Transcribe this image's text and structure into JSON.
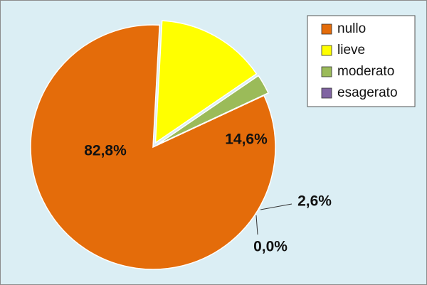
{
  "chart_data": {
    "type": "pie",
    "categories": [
      "nullo",
      "lieve",
      "moderato",
      "esagerato"
    ],
    "values": [
      82.8,
      14.6,
      2.6,
      0.0
    ],
    "value_labels": [
      "82,8%",
      "14,6%",
      "2,6%",
      "0,0%"
    ],
    "colors": [
      "#e46c0a",
      "#ffff00",
      "#9bbb59",
      "#8064a2"
    ],
    "legend": "top-right"
  }
}
